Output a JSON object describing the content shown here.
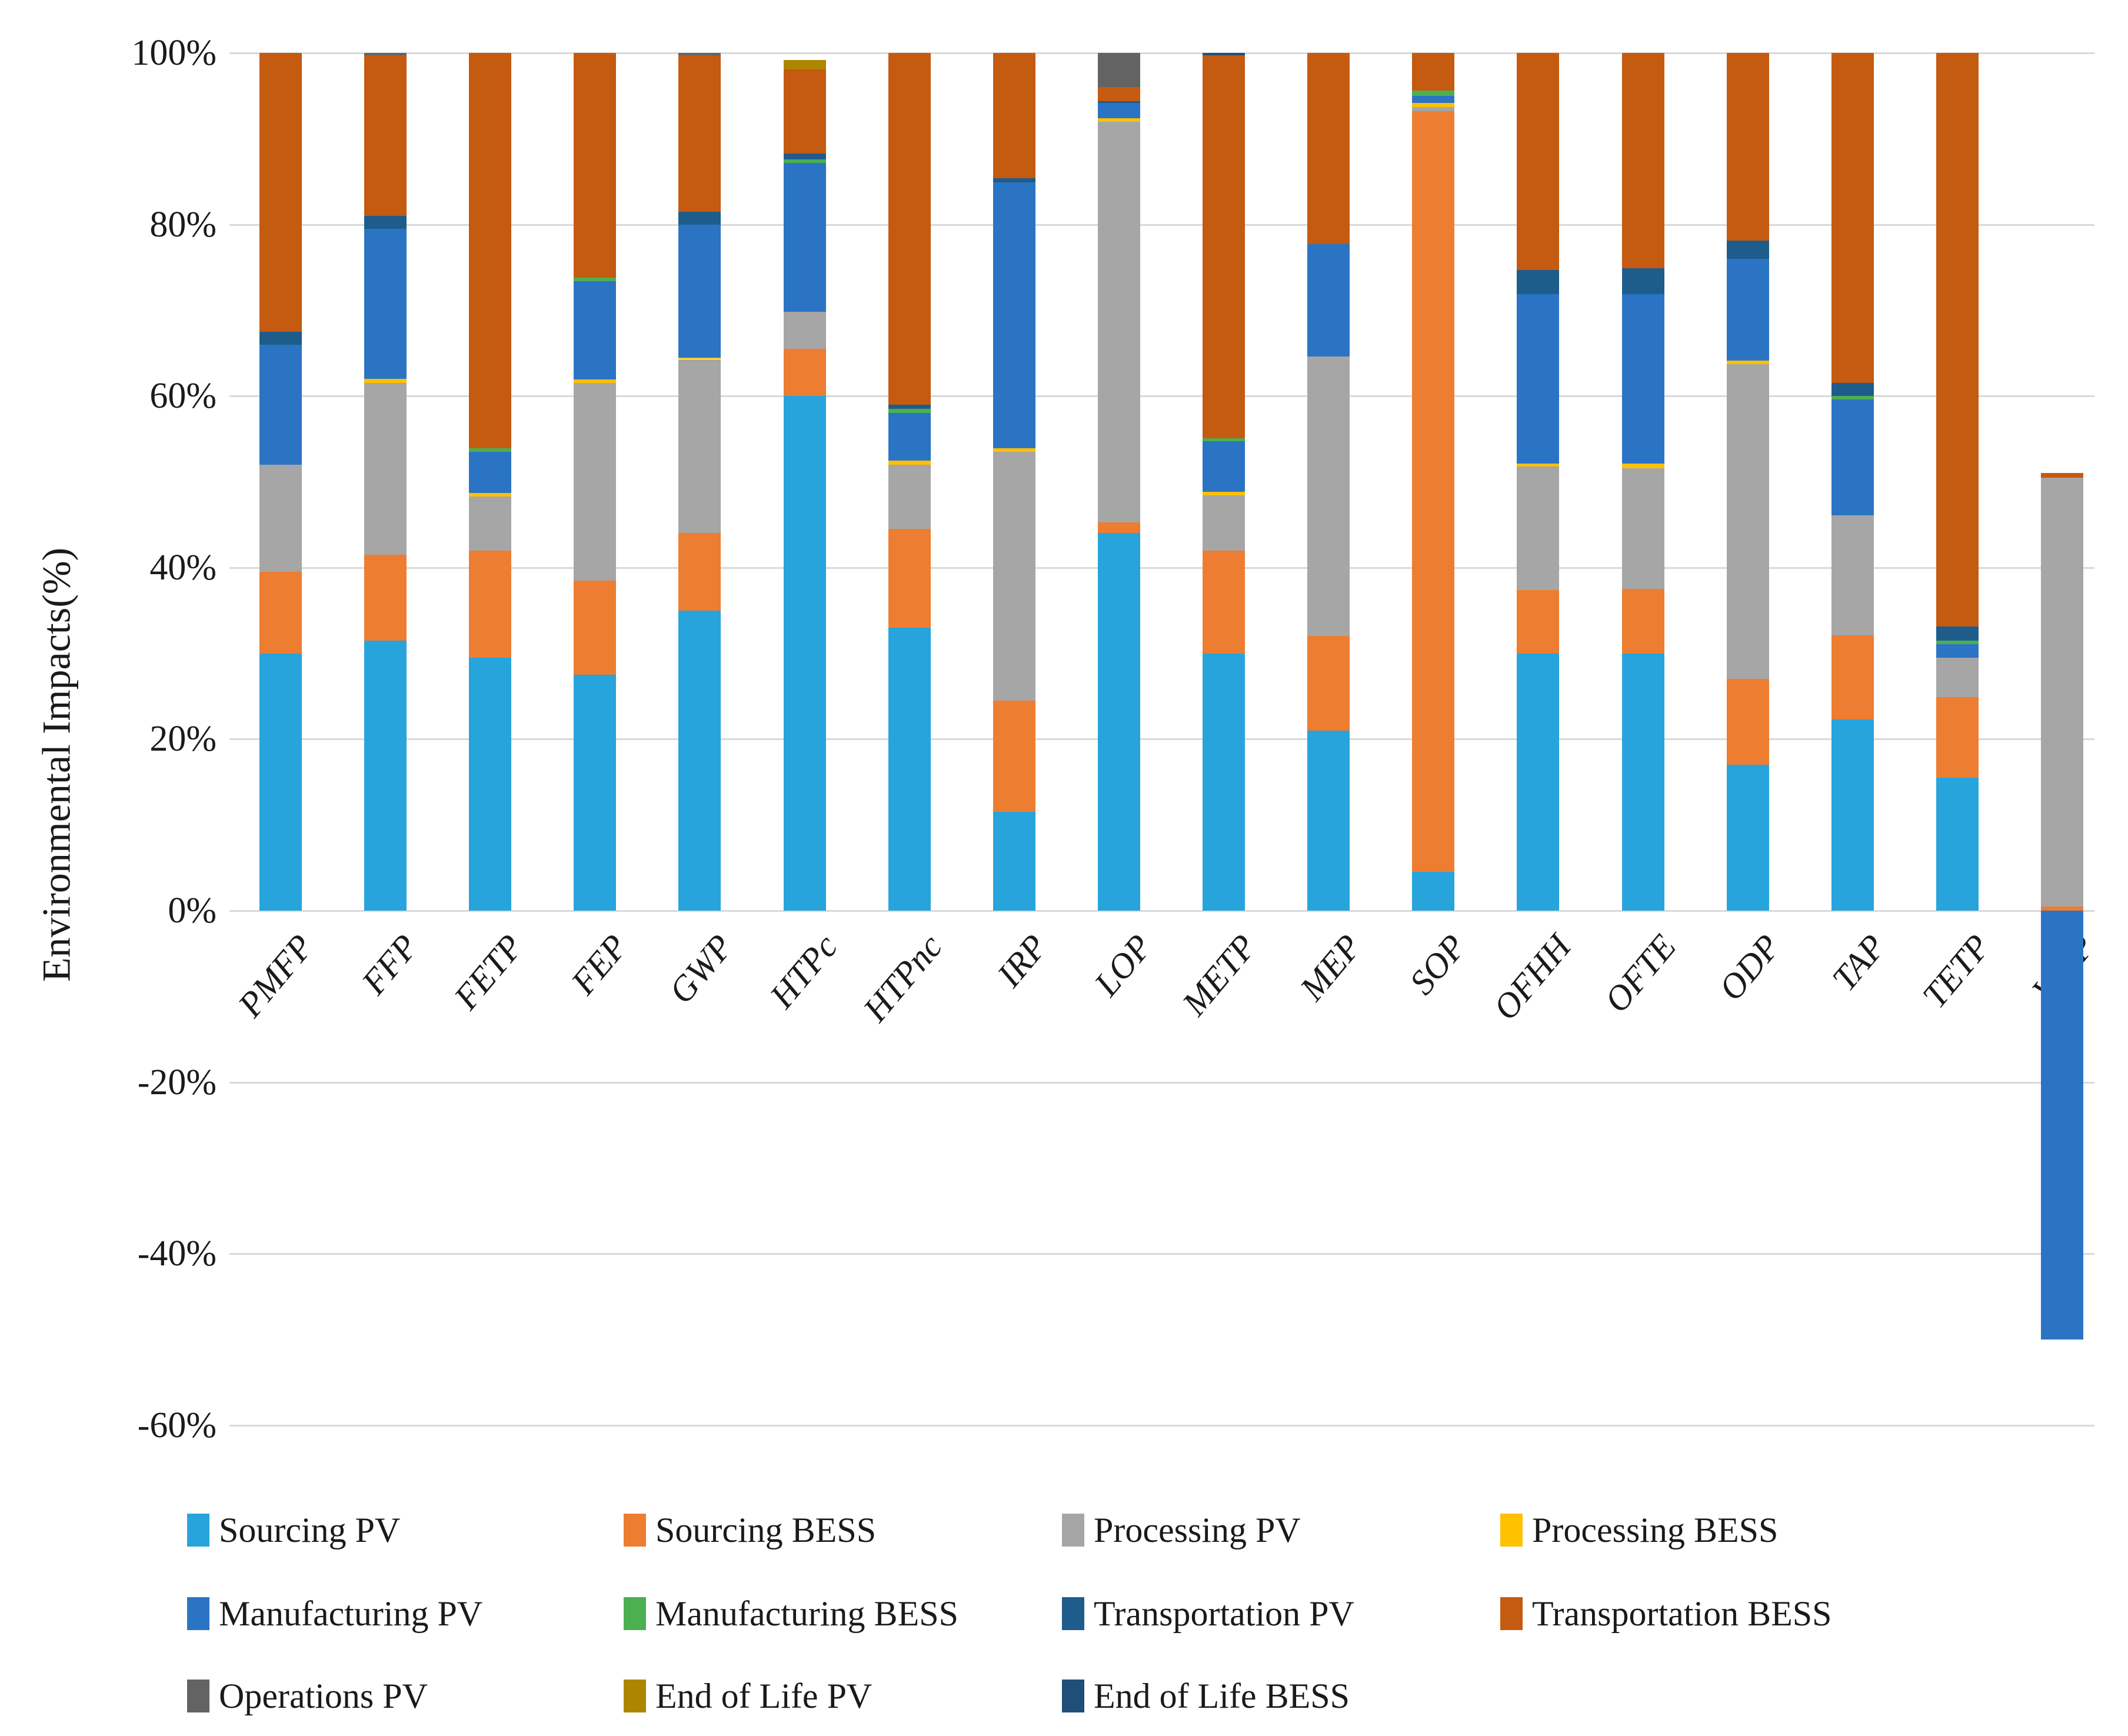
{
  "chart_data": {
    "type": "bar",
    "stacked": true,
    "title": "",
    "xlabel": "",
    "ylabel": "Environmental Impacts(%)",
    "ylim": [
      -60,
      100
    ],
    "grid": "horizontal",
    "gridline_color": "#d9d9d9",
    "legend_position": "bottom",
    "yticks": [
      {
        "v": 100,
        "label": "100%"
      },
      {
        "v": 80,
        "label": "80%"
      },
      {
        "v": 60,
        "label": "60%"
      },
      {
        "v": 40,
        "label": "40%"
      },
      {
        "v": 20,
        "label": "20%"
      },
      {
        "v": 0,
        "label": "0%"
      },
      {
        "v": -20,
        "label": "-20%"
      },
      {
        "v": -40,
        "label": "-40%"
      },
      {
        "v": -60,
        "label": "-60%"
      }
    ],
    "categories": [
      "PMFP",
      "FFP",
      "FETP",
      "FEP",
      "GWP",
      "HTPc",
      "HTPnc",
      "IRP",
      "LOP",
      "METP",
      "MEP",
      "SOP",
      "OFHH",
      "OFTE",
      "ODP",
      "TAP",
      "TETP",
      "WCP"
    ],
    "series": [
      {
        "name": "Sourcing PV",
        "color": "#27A4DC",
        "values": [
          30,
          31.5,
          29.5,
          27.5,
          35,
          60,
          33,
          11.5,
          44,
          30,
          21,
          4.5,
          30,
          30,
          17,
          22.3,
          15.5,
          0
        ]
      },
      {
        "name": "Sourcing BESS",
        "color": "#ED7D31",
        "values": [
          9.5,
          10,
          12.5,
          11,
          9,
          5.5,
          11.5,
          13,
          1.3,
          12,
          11,
          88.7,
          7.4,
          7.5,
          10,
          9.8,
          9.4,
          0.5
        ]
      },
      {
        "name": "Processing PV",
        "color": "#A6A6A6",
        "values": [
          12.5,
          20,
          6.3,
          23,
          20.3,
          4.3,
          7.5,
          29,
          46.7,
          6.4,
          32.6,
          0.5,
          14.4,
          14.1,
          36.7,
          14,
          4.6,
          50
        ]
      },
      {
        "name": "Processing BESS",
        "color": "#FFC000",
        "values": [
          0,
          0.5,
          0.4,
          0.4,
          0.2,
          0,
          0.5,
          0.4,
          0.4,
          0.4,
          0,
          0.5,
          0.3,
          0.5,
          0.4,
          0,
          0,
          0
        ]
      },
      {
        "name": "Manufacturing PV",
        "color": "#2B74C4",
        "values": [
          14,
          17.5,
          4.8,
          11.5,
          15.5,
          17.4,
          5.5,
          31,
          1.8,
          5.9,
          13.1,
          0.8,
          19.8,
          19.8,
          11.9,
          13.5,
          1.6,
          -50
        ]
      },
      {
        "name": "Manufacturing BESS",
        "color": "#4CAF50",
        "values": [
          0,
          0,
          0.4,
          0.4,
          0,
          0.4,
          0.5,
          0,
          0,
          0.4,
          0,
          0.6,
          0,
          0,
          0,
          0.4,
          0.4,
          0
        ]
      },
      {
        "name": "Transportation PV",
        "color": "#1E5C8C",
        "values": [
          1.5,
          1.5,
          0,
          0,
          1.5,
          0.7,
          0.5,
          0.5,
          0.2,
          0,
          0,
          0,
          2.8,
          3,
          2.1,
          1.5,
          1.6,
          0
        ]
      },
      {
        "name": "Transportation BESS",
        "color": "#C55A11",
        "values": [
          32.5,
          18.7,
          46.1,
          26.2,
          18.2,
          9.8,
          41,
          14.6,
          1.6,
          44.6,
          22.3,
          4.4,
          25.3,
          25.1,
          21.9,
          38.5,
          66.9,
          0.5
        ]
      },
      {
        "name": "Operations PV",
        "color": "#636363",
        "values": [
          0,
          0.3,
          0,
          0,
          0.3,
          0,
          0,
          0,
          4,
          0,
          0,
          0,
          0,
          0,
          0,
          0,
          0,
          0
        ]
      },
      {
        "name": "End of Life PV",
        "color": "#AD8600",
        "values": [
          0,
          0,
          0,
          0,
          0,
          1.1,
          0,
          0,
          0,
          0,
          0,
          0,
          0,
          0,
          0,
          0,
          0,
          0
        ]
      },
      {
        "name": "End of Life BESS",
        "color": "#1F4E79",
        "values": [
          0,
          0,
          0,
          0,
          0,
          0,
          0,
          0,
          0,
          0.3,
          0,
          0,
          0,
          0,
          0,
          0,
          0,
          0
        ]
      }
    ],
    "legend_rows": [
      [
        0,
        1,
        2,
        3
      ],
      [
        4,
        5,
        6,
        7
      ],
      [
        8,
        9,
        10
      ]
    ]
  }
}
